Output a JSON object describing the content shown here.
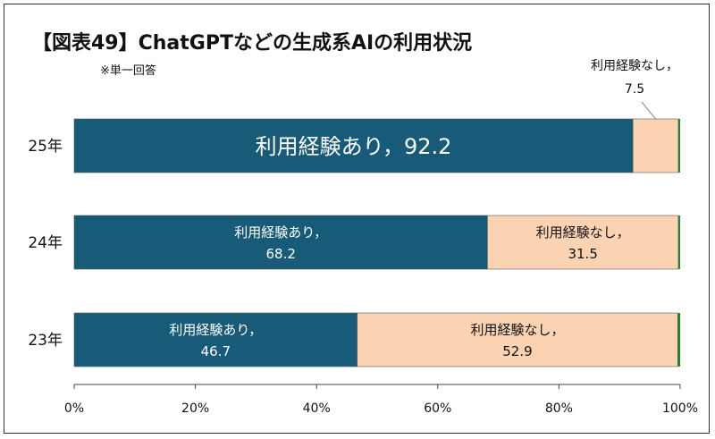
{
  "title": "【図表49】ChatGPTなどの生成系AIの利用状況",
  "subtitle": "※単一回答",
  "chart_data": {
    "type": "bar",
    "orientation": "horizontal",
    "stacked": true,
    "categories": [
      "25年",
      "24年",
      "23年"
    ],
    "series": [
      {
        "name": "利用経験あり",
        "values": [
          92.2,
          68.2,
          46.7
        ],
        "color": "#175b78",
        "label_color": "#ffffff"
      },
      {
        "name": "利用経験なし",
        "values": [
          7.5,
          31.5,
          52.9
        ],
        "color": "#fbd3b3",
        "label_color": "#111111"
      },
      {
        "name": "",
        "values": [
          0.3,
          0.3,
          0.4
        ],
        "color": "#1e8a2e",
        "label_color": "#111111"
      }
    ],
    "data_labels": [
      [
        "利用経験あり，92.2",
        "利用経験なし，7.5",
        ""
      ],
      [
        "利用経験あり，68.2",
        "利用経験なし，31.5",
        ""
      ],
      [
        "利用経験あり，46.7",
        "利用経験なし，52.9",
        ""
      ]
    ],
    "xlim": [
      0,
      100
    ],
    "xticks": [
      "0%",
      "20%",
      "40%",
      "60%",
      "80%",
      "100%"
    ],
    "xtick_values": [
      0,
      20,
      40,
      60,
      80,
      100
    ],
    "grid": false,
    "legend": "none"
  }
}
